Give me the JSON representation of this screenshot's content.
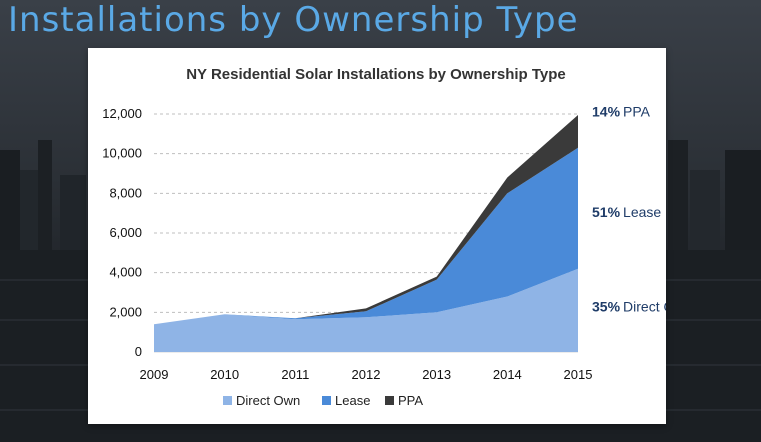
{
  "slide": {
    "title": "Installations by Ownership Type"
  },
  "colors": {
    "direct_own": "#8fb4e6",
    "lease": "#4a8ad8",
    "ppa": "#3a3a3a"
  },
  "chart_data": {
    "type": "area",
    "stacked": true,
    "title": "NY Residential Solar Installations by Ownership Type",
    "xlabel": "",
    "ylabel": "",
    "x": [
      "2009",
      "2010",
      "2011",
      "2012",
      "2013",
      "2014",
      "2015"
    ],
    "ylim": [
      0,
      12000
    ],
    "yticks": [
      "0",
      "2,000",
      "4,000",
      "6,000",
      "8,000",
      "10,000",
      "12,000"
    ],
    "ytick_values": [
      0,
      2000,
      4000,
      6000,
      8000,
      10000,
      12000
    ],
    "grid": true,
    "legend_position": "bottom",
    "series": [
      {
        "name": "Direct Own",
        "values": [
          1400,
          1900,
          1650,
          1750,
          2000,
          2800,
          4200
        ]
      },
      {
        "name": "Lease",
        "values": [
          0,
          0,
          50,
          300,
          1650,
          5200,
          6100
        ]
      },
      {
        "name": "PPA",
        "values": [
          0,
          0,
          0,
          150,
          150,
          800,
          1650
        ]
      }
    ],
    "annotations": [
      {
        "pct": "14%",
        "label": "PPA"
      },
      {
        "pct": "51%",
        "label": "Lease"
      },
      {
        "pct": "35%",
        "label": "Direct Own"
      }
    ]
  }
}
